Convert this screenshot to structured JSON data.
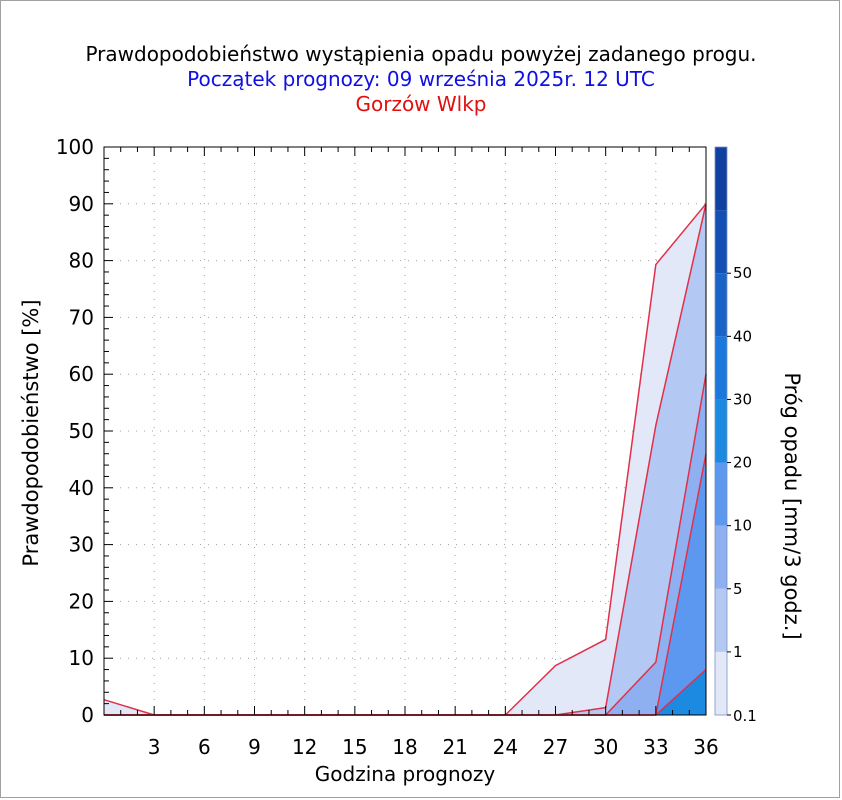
{
  "titles": {
    "line1": "Prawdopodobieństwo wystąpienia opadu powyżej zadanego progu.",
    "line2": "Początek prognozy: 09 września 2025r. 12 UTC",
    "line3": "Gorzów Wlkp"
  },
  "colors": {
    "title": "#000000",
    "forecast_start": "#1010e0",
    "location": "#e01010",
    "series_outline": "#e0304a",
    "grid": "#a0a0a0"
  },
  "chart_data": {
    "type": "area",
    "xlabel": "Godzina prognozy",
    "ylabel": "Prawdopodobieństwo [%]",
    "x": [
      0,
      3,
      6,
      9,
      12,
      15,
      18,
      21,
      24,
      27,
      30,
      33,
      36
    ],
    "xticks": [
      "3",
      "6",
      "9",
      "12",
      "15",
      "18",
      "21",
      "24",
      "27",
      "30",
      "33",
      "36"
    ],
    "xlim": [
      0,
      36
    ],
    "ylim": [
      0,
      100
    ],
    "yticks": [
      "0",
      "10",
      "20",
      "30",
      "40",
      "50",
      "60",
      "70",
      "80",
      "90",
      "100"
    ],
    "grid": true,
    "series": [
      {
        "threshold": 0.1,
        "color": "#e3e8f8",
        "values": [
          2.7,
          0,
          0,
          0,
          0,
          0,
          0,
          0,
          0,
          8.7,
          13.3,
          79.3,
          90
        ]
      },
      {
        "threshold": 1,
        "color": "#b4c8f4",
        "values": [
          0,
          0,
          0,
          0,
          0,
          0,
          0,
          0,
          0,
          0,
          1.3,
          51,
          90
        ]
      },
      {
        "threshold": 5,
        "color": "#8fb0f0",
        "values": [
          0,
          0,
          0,
          0,
          0,
          0,
          0,
          0,
          0,
          0,
          0,
          9.3,
          60
        ]
      },
      {
        "threshold": 10,
        "color": "#5c98f0",
        "values": [
          0,
          0,
          0,
          0,
          0,
          0,
          0,
          0,
          0,
          0,
          0,
          0,
          46
        ]
      },
      {
        "threshold": 20,
        "color": "#1c8ae0",
        "values": [
          0,
          0,
          0,
          0,
          0,
          0,
          0,
          0,
          0,
          0,
          0,
          0,
          8
        ]
      }
    ],
    "colorbar": {
      "label": "Próg opadu [mm/3 godz.]",
      "ticks": [
        "0.1",
        "1",
        "5",
        "10",
        "20",
        "30",
        "40",
        "50"
      ],
      "colors": [
        "#e3e8f8",
        "#b4c8f4",
        "#8fb0f0",
        "#5c98f0",
        "#1c8ae0",
        "#1b78dc",
        "#1a64c8",
        "#1450b4",
        "#1040a0"
      ]
    }
  }
}
